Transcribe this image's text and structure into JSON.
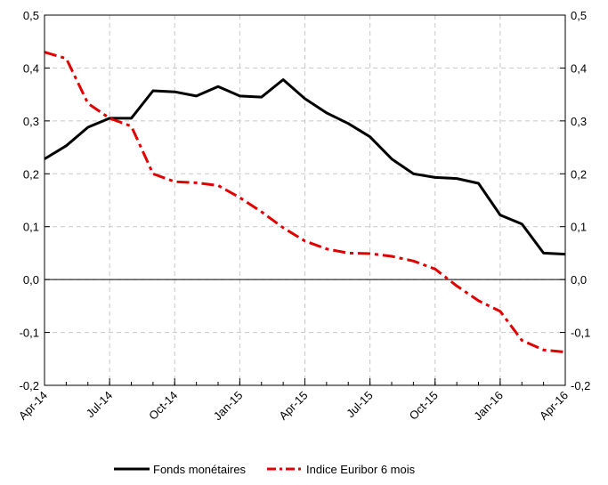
{
  "chart_data": {
    "type": "line",
    "title": "",
    "xlabel": "",
    "ylabel": "",
    "x": [
      "Apr-14",
      "May-14",
      "Jun-14",
      "Jul-14",
      "Aug-14",
      "Sep-14",
      "Oct-14",
      "Nov-14",
      "Dec-14",
      "Jan-15",
      "Feb-15",
      "Mar-15",
      "Apr-15",
      "May-15",
      "Jun-15",
      "Jul-15",
      "Aug-15",
      "Sep-15",
      "Oct-15",
      "Nov-15",
      "Dec-15",
      "Jan-16",
      "Feb-16",
      "Mar-16",
      "Apr-16"
    ],
    "x_tick_labels": [
      "Apr-14",
      "Jul-14",
      "Oct-14",
      "Jan-15",
      "Apr-15",
      "Jul-15",
      "Oct-15",
      "Jan-16",
      "Apr-16"
    ],
    "ylim": [
      -0.2,
      0.5
    ],
    "y_ticks": [
      0.5,
      0.4,
      0.3,
      0.2,
      0.1,
      0.0,
      -0.1,
      -0.2
    ],
    "y_tick_labels_left": [
      "0,5",
      "0,4",
      "0,3",
      "0,2",
      "0,1",
      "0,0",
      "-0,1",
      "-0,2"
    ],
    "y_tick_labels_right": [
      "0,5",
      "0,4",
      "0,3",
      "0,2",
      "0,1",
      "0,0",
      "-0,1",
      "-0,2"
    ],
    "grid": true,
    "zero_line": true,
    "legend_position": "bottom",
    "series": [
      {
        "name": "Fonds monétaires",
        "color": "#000000",
        "style": "solid",
        "values": [
          0.228,
          0.253,
          0.288,
          0.305,
          0.305,
          0.357,
          0.355,
          0.347,
          0.365,
          0.347,
          0.345,
          0.378,
          0.342,
          0.315,
          0.295,
          0.27,
          0.228,
          0.2,
          0.193,
          0.191,
          0.182,
          0.122,
          0.105,
          0.05,
          0.048
        ]
      },
      {
        "name": "Indice Euribor 6 mois",
        "color": "#e00000",
        "style": "dashed",
        "values": [
          0.43,
          0.418,
          0.333,
          0.305,
          0.29,
          0.2,
          0.185,
          0.183,
          0.178,
          0.155,
          0.128,
          0.098,
          0.073,
          0.058,
          0.05,
          0.049,
          0.044,
          0.035,
          0.02,
          -0.012,
          -0.04,
          -0.06,
          -0.115,
          -0.133,
          -0.137
        ]
      }
    ]
  }
}
